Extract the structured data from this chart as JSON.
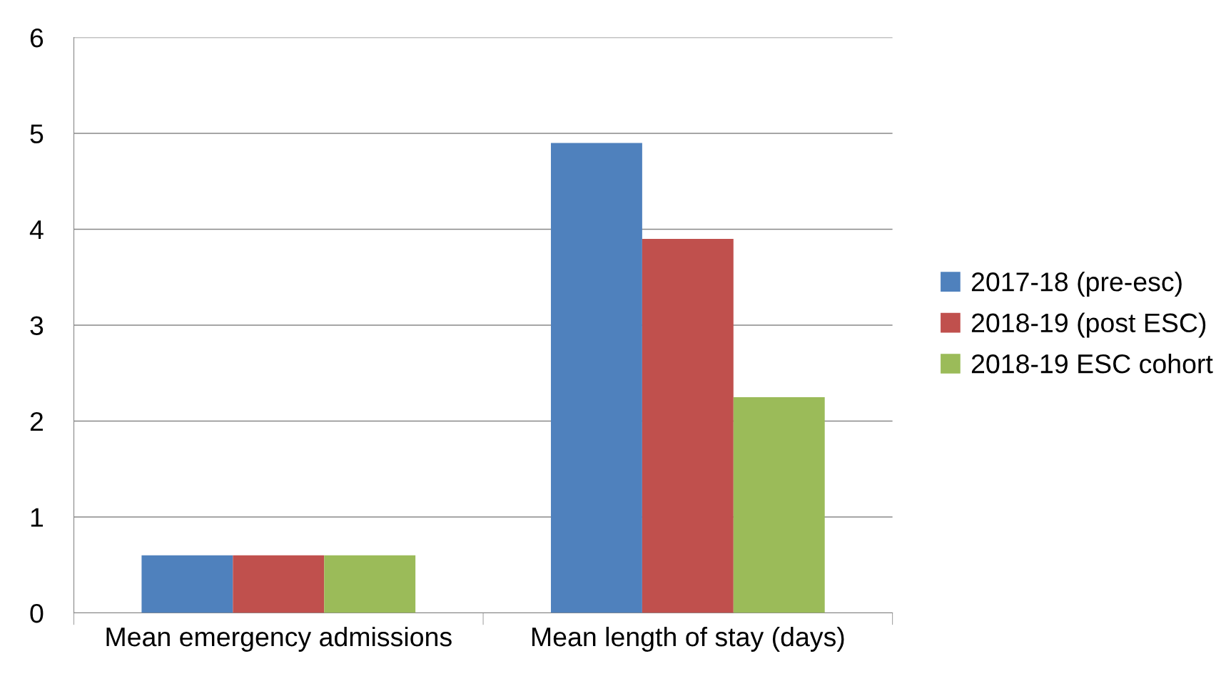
{
  "chart_data": {
    "type": "bar",
    "categories": [
      "Mean emergency admissions",
      "Mean length of stay (days)"
    ],
    "series": [
      {
        "name": "2017-18 (pre-esc)",
        "color": "#4f81bd",
        "values": [
          0.6,
          4.9
        ]
      },
      {
        "name": "2018-19 (post ESC)",
        "color": "#c0504d",
        "values": [
          0.6,
          3.9
        ]
      },
      {
        "name": "2018-19 ESC cohort",
        "color": "#9bbb59",
        "values": [
          0.6,
          2.25
        ]
      }
    ],
    "ylim": [
      0,
      6
    ],
    "yticks": [
      0,
      1,
      2,
      3,
      4,
      5,
      6
    ],
    "grid": "y",
    "legend": "right"
  }
}
